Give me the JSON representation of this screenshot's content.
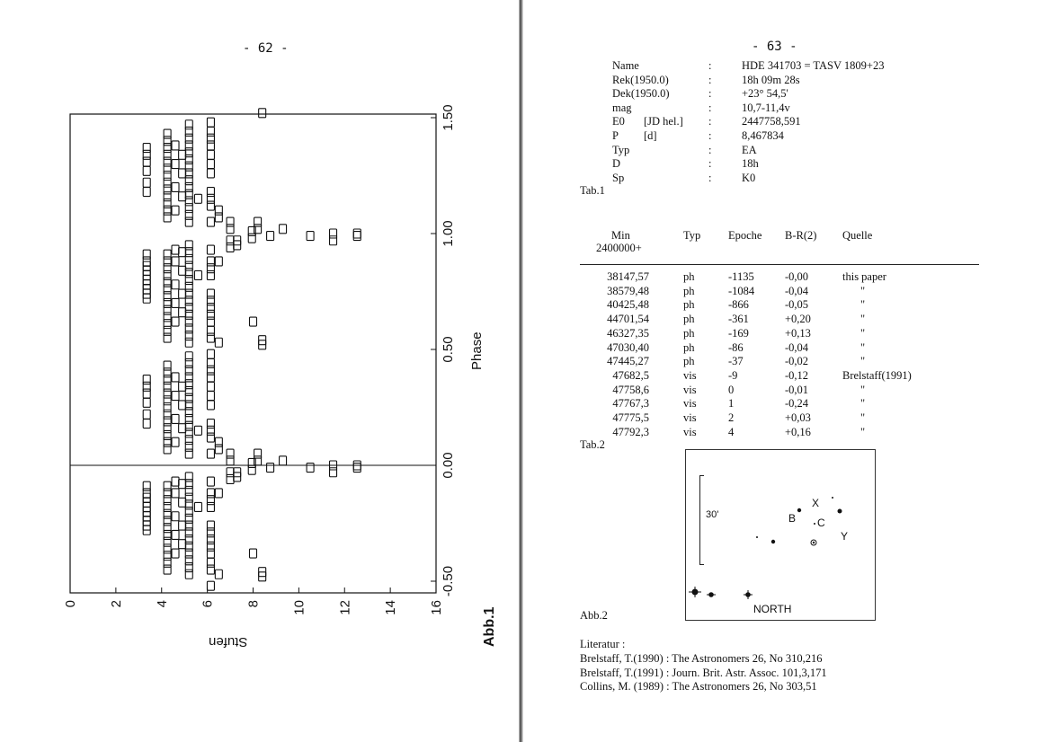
{
  "left_page": {
    "page_number": "- 62 -",
    "figure_label": "Abb.1",
    "chart_data": {
      "type": "scatter",
      "marker": "open-square",
      "xlabel": "Stufen",
      "ylabel": "Phase",
      "xlim": [
        0,
        16
      ],
      "ylim": [
        -0.5,
        1.5
      ],
      "x_ticks": [
        "0",
        "2",
        "4",
        "6",
        "8",
        "10",
        "12",
        "14",
        "16"
      ],
      "y_ticks": [
        "-0.50",
        "0.00",
        "0.50",
        "1.00",
        "1.50"
      ],
      "phase_folded_repeat": true,
      "reference_line_phases": [
        0.0
      ],
      "points": [
        [
          3.35,
          0.18
        ],
        [
          3.35,
          0.22
        ],
        [
          3.35,
          0.27
        ],
        [
          3.35,
          0.31
        ],
        [
          3.35,
          0.34
        ],
        [
          3.35,
          0.37
        ],
        [
          3.35,
          0.72
        ],
        [
          3.35,
          0.74
        ],
        [
          3.35,
          0.76
        ],
        [
          3.35,
          0.78
        ],
        [
          3.35,
          0.8
        ],
        [
          3.35,
          0.82
        ],
        [
          3.35,
          0.84
        ],
        [
          3.35,
          0.86
        ],
        [
          3.35,
          0.88
        ],
        [
          3.35,
          0.91
        ],
        [
          4.25,
          0.07
        ],
        [
          4.25,
          0.1
        ],
        [
          4.25,
          0.13
        ],
        [
          4.25,
          0.16
        ],
        [
          4.25,
          0.19
        ],
        [
          4.25,
          0.22
        ],
        [
          4.25,
          0.25
        ],
        [
          4.25,
          0.28
        ],
        [
          4.25,
          0.31
        ],
        [
          4.25,
          0.34
        ],
        [
          4.25,
          0.37
        ],
        [
          4.25,
          0.4
        ],
        [
          4.25,
          0.43
        ],
        [
          4.25,
          0.55
        ],
        [
          4.25,
          0.58
        ],
        [
          4.25,
          0.61
        ],
        [
          4.25,
          0.64
        ],
        [
          4.25,
          0.67
        ],
        [
          4.25,
          0.7
        ],
        [
          4.25,
          0.73
        ],
        [
          4.25,
          0.76
        ],
        [
          4.25,
          0.79
        ],
        [
          4.25,
          0.82
        ],
        [
          4.25,
          0.85
        ],
        [
          4.25,
          0.88
        ],
        [
          4.25,
          0.91
        ],
        [
          4.6,
          0.1
        ],
        [
          4.6,
          0.2
        ],
        [
          4.6,
          0.3
        ],
        [
          4.6,
          0.38
        ],
        [
          4.6,
          0.62
        ],
        [
          4.6,
          0.7
        ],
        [
          4.6,
          0.78
        ],
        [
          4.6,
          0.88
        ],
        [
          4.6,
          0.93
        ],
        [
          4.9,
          0.16
        ],
        [
          4.9,
          0.26
        ],
        [
          4.9,
          0.34
        ],
        [
          4.9,
          0.66
        ],
        [
          4.9,
          0.74
        ],
        [
          4.9,
          0.84
        ],
        [
          4.9,
          0.92
        ],
        [
          5.2,
          0.05
        ],
        [
          5.2,
          0.08
        ],
        [
          5.2,
          0.11
        ],
        [
          5.2,
          0.14
        ],
        [
          5.2,
          0.17
        ],
        [
          5.2,
          0.2
        ],
        [
          5.2,
          0.23
        ],
        [
          5.2,
          0.26
        ],
        [
          5.2,
          0.29
        ],
        [
          5.2,
          0.32
        ],
        [
          5.2,
          0.35
        ],
        [
          5.2,
          0.38
        ],
        [
          5.2,
          0.41
        ],
        [
          5.2,
          0.44
        ],
        [
          5.2,
          0.47
        ],
        [
          5.2,
          0.53
        ],
        [
          5.2,
          0.56
        ],
        [
          5.2,
          0.59
        ],
        [
          5.2,
          0.62
        ],
        [
          5.2,
          0.65
        ],
        [
          5.2,
          0.68
        ],
        [
          5.2,
          0.71
        ],
        [
          5.2,
          0.74
        ],
        [
          5.2,
          0.77
        ],
        [
          5.2,
          0.8
        ],
        [
          5.2,
          0.83
        ],
        [
          5.2,
          0.86
        ],
        [
          5.2,
          0.89
        ],
        [
          5.2,
          0.92
        ],
        [
          5.2,
          0.95
        ],
        [
          5.6,
          0.15
        ],
        [
          5.6,
          0.82
        ],
        [
          6.15,
          0.05
        ],
        [
          6.15,
          0.12
        ],
        [
          6.15,
          0.15
        ],
        [
          6.15,
          0.18
        ],
        [
          6.15,
          0.26
        ],
        [
          6.15,
          0.3
        ],
        [
          6.15,
          0.34
        ],
        [
          6.15,
          0.38
        ],
        [
          6.15,
          0.41
        ],
        [
          6.15,
          0.44
        ],
        [
          6.15,
          0.48
        ],
        [
          6.15,
          0.55
        ],
        [
          6.15,
          0.58
        ],
        [
          6.15,
          0.62
        ],
        [
          6.15,
          0.65
        ],
        [
          6.15,
          0.68
        ],
        [
          6.15,
          0.71
        ],
        [
          6.15,
          0.74
        ],
        [
          6.15,
          0.82
        ],
        [
          6.15,
          0.85
        ],
        [
          6.15,
          0.88
        ],
        [
          6.15,
          0.93
        ],
        [
          6.5,
          0.07
        ],
        [
          6.5,
          0.1
        ],
        [
          6.5,
          0.53
        ],
        [
          6.5,
          0.88
        ],
        [
          7.0,
          0.02
        ],
        [
          7.0,
          0.05
        ],
        [
          7.0,
          0.94
        ],
        [
          7.0,
          0.97
        ],
        [
          7.3,
          -0.05
        ],
        [
          7.3,
          -0.03
        ],
        [
          7.95,
          -0.02
        ],
        [
          7.95,
          0.01
        ],
        [
          8.0,
          0.62
        ],
        [
          8.4,
          0.52
        ],
        [
          8.4,
          0.54
        ],
        [
          8.2,
          0.02
        ],
        [
          8.2,
          0.05
        ],
        [
          8.75,
          -0.01
        ],
        [
          9.3,
          0.02
        ],
        [
          10.5,
          -0.01
        ],
        [
          11.5,
          0.0
        ],
        [
          11.5,
          -0.03
        ],
        [
          12.55,
          -0.01
        ],
        [
          12.55,
          0.0
        ]
      ]
    }
  },
  "right_page": {
    "page_number": "- 63 -",
    "tab1": {
      "rows": [
        {
          "label": "Name",
          "unit": "",
          "value": "HDE 341703 = TASV 1809+23"
        },
        {
          "label": "Rek(1950.0)",
          "unit": "",
          "value": "18h 09m 28s"
        },
        {
          "label": "Dek(1950.0)",
          "unit": "",
          "value": "+23° 54,5'"
        },
        {
          "label": "mag",
          "unit": "",
          "value": "10,7-11,4v"
        },
        {
          "label": "E0",
          "unit": "[JD hel.]",
          "value": "2447758,591"
        },
        {
          "label": "P",
          "unit": "[d]",
          "value": "8,467834"
        },
        {
          "label": "Typ",
          "unit": "",
          "value": "EA"
        },
        {
          "label": "D",
          "unit": "",
          "value": "18h"
        },
        {
          "label": "Sp",
          "unit": "",
          "value": "K0"
        }
      ],
      "separator": ":",
      "caption": "Tab.1"
    },
    "tab2": {
      "headers": {
        "min": "Min",
        "min_sub": "2400000+",
        "typ": "Typ",
        "epoche": "Epoche",
        "br": "B-R(2)",
        "quelle": "Quelle"
      },
      "rows": [
        [
          "38147,57",
          "ph",
          "-1135",
          "-0,00",
          "this paper"
        ],
        [
          "38579,48",
          "ph",
          "-1084",
          "-0,04",
          "\""
        ],
        [
          "40425,48",
          "ph",
          "-866",
          "-0,05",
          "\""
        ],
        [
          "44701,54",
          "ph",
          "-361",
          "+0,20",
          "\""
        ],
        [
          "46327,35",
          "ph",
          "-169",
          "+0,13",
          "\""
        ],
        [
          "47030,40",
          "ph",
          "-86",
          "-0,04",
          "\""
        ],
        [
          "47445,27",
          "ph",
          "-37",
          "-0,02",
          "\""
        ],
        [
          "47682,5",
          "vis",
          "-9",
          "-0,12",
          "Brelstaff(1991)"
        ],
        [
          "47758,6",
          "vis",
          "0",
          "-0,01",
          "\""
        ],
        [
          "47767,3",
          "vis",
          "1",
          "-0,24",
          "\""
        ],
        [
          "47775,5",
          "vis",
          "2",
          "+0,03",
          "\""
        ],
        [
          "47792,3",
          "vis",
          "4",
          "+0,16",
          "\""
        ]
      ],
      "caption": "Tab.2"
    },
    "finder": {
      "scale_label": "30'",
      "labels": {
        "x": "X",
        "b": "B",
        "c": "C",
        "y": "Y"
      },
      "direction": "NORTH",
      "caption": "Abb.2"
    },
    "literature": {
      "heading": "Literatur :",
      "refs": [
        "Brelstaff, T.(1990) : The Astronomers 26, No 310,216",
        "Brelstaff, T.(1991) : Journ. Brit. Astr. Assoc. 101,3,171",
        "Collins, M. (1989) : The Astronomers 26, No 303,51"
      ]
    }
  }
}
